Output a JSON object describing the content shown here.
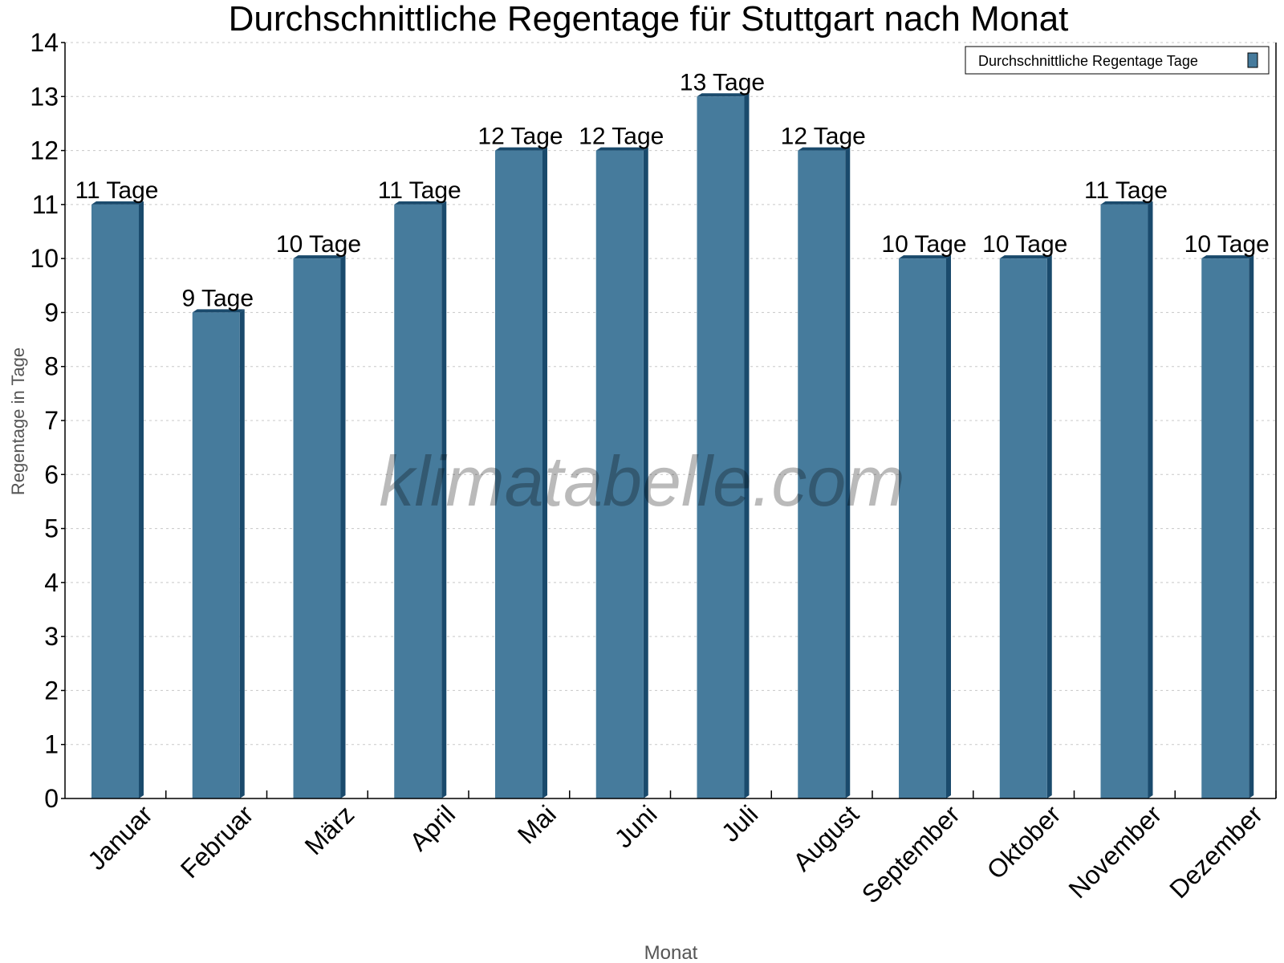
{
  "chart_data": {
    "type": "bar",
    "title": "Durchschnittliche Regentage für Stuttgart nach Monat",
    "xlabel": "Monat",
    "ylabel": "Regentage in Tage",
    "categories": [
      "Januar",
      "Februar",
      "März",
      "April",
      "Mai",
      "Juni",
      "Juli",
      "August",
      "September",
      "Oktober",
      "November",
      "Dezember"
    ],
    "series": [
      {
        "name": "Durchschnittliche Regentage Tage",
        "values": [
          11,
          9,
          10,
          11,
          12,
          12,
          13,
          12,
          10,
          10,
          11,
          10
        ],
        "color": "#467b9c"
      }
    ],
    "data_labels": [
      "11 Tage",
      "9 Tage",
      "10 Tage",
      "11 Tage",
      "12 Tage",
      "12 Tage",
      "13 Tage",
      "12 Tage",
      "10 Tage",
      "10 Tage",
      "11 Tage",
      "10 Tage"
    ],
    "ylim": [
      0,
      14
    ],
    "yticks": [
      0,
      1,
      2,
      3,
      4,
      5,
      6,
      7,
      8,
      9,
      10,
      11,
      12,
      13,
      14
    ],
    "grid": true,
    "legend_position": "top-right",
    "side_color": "#1a4a6c",
    "watermark": "klimatabelle.com"
  }
}
